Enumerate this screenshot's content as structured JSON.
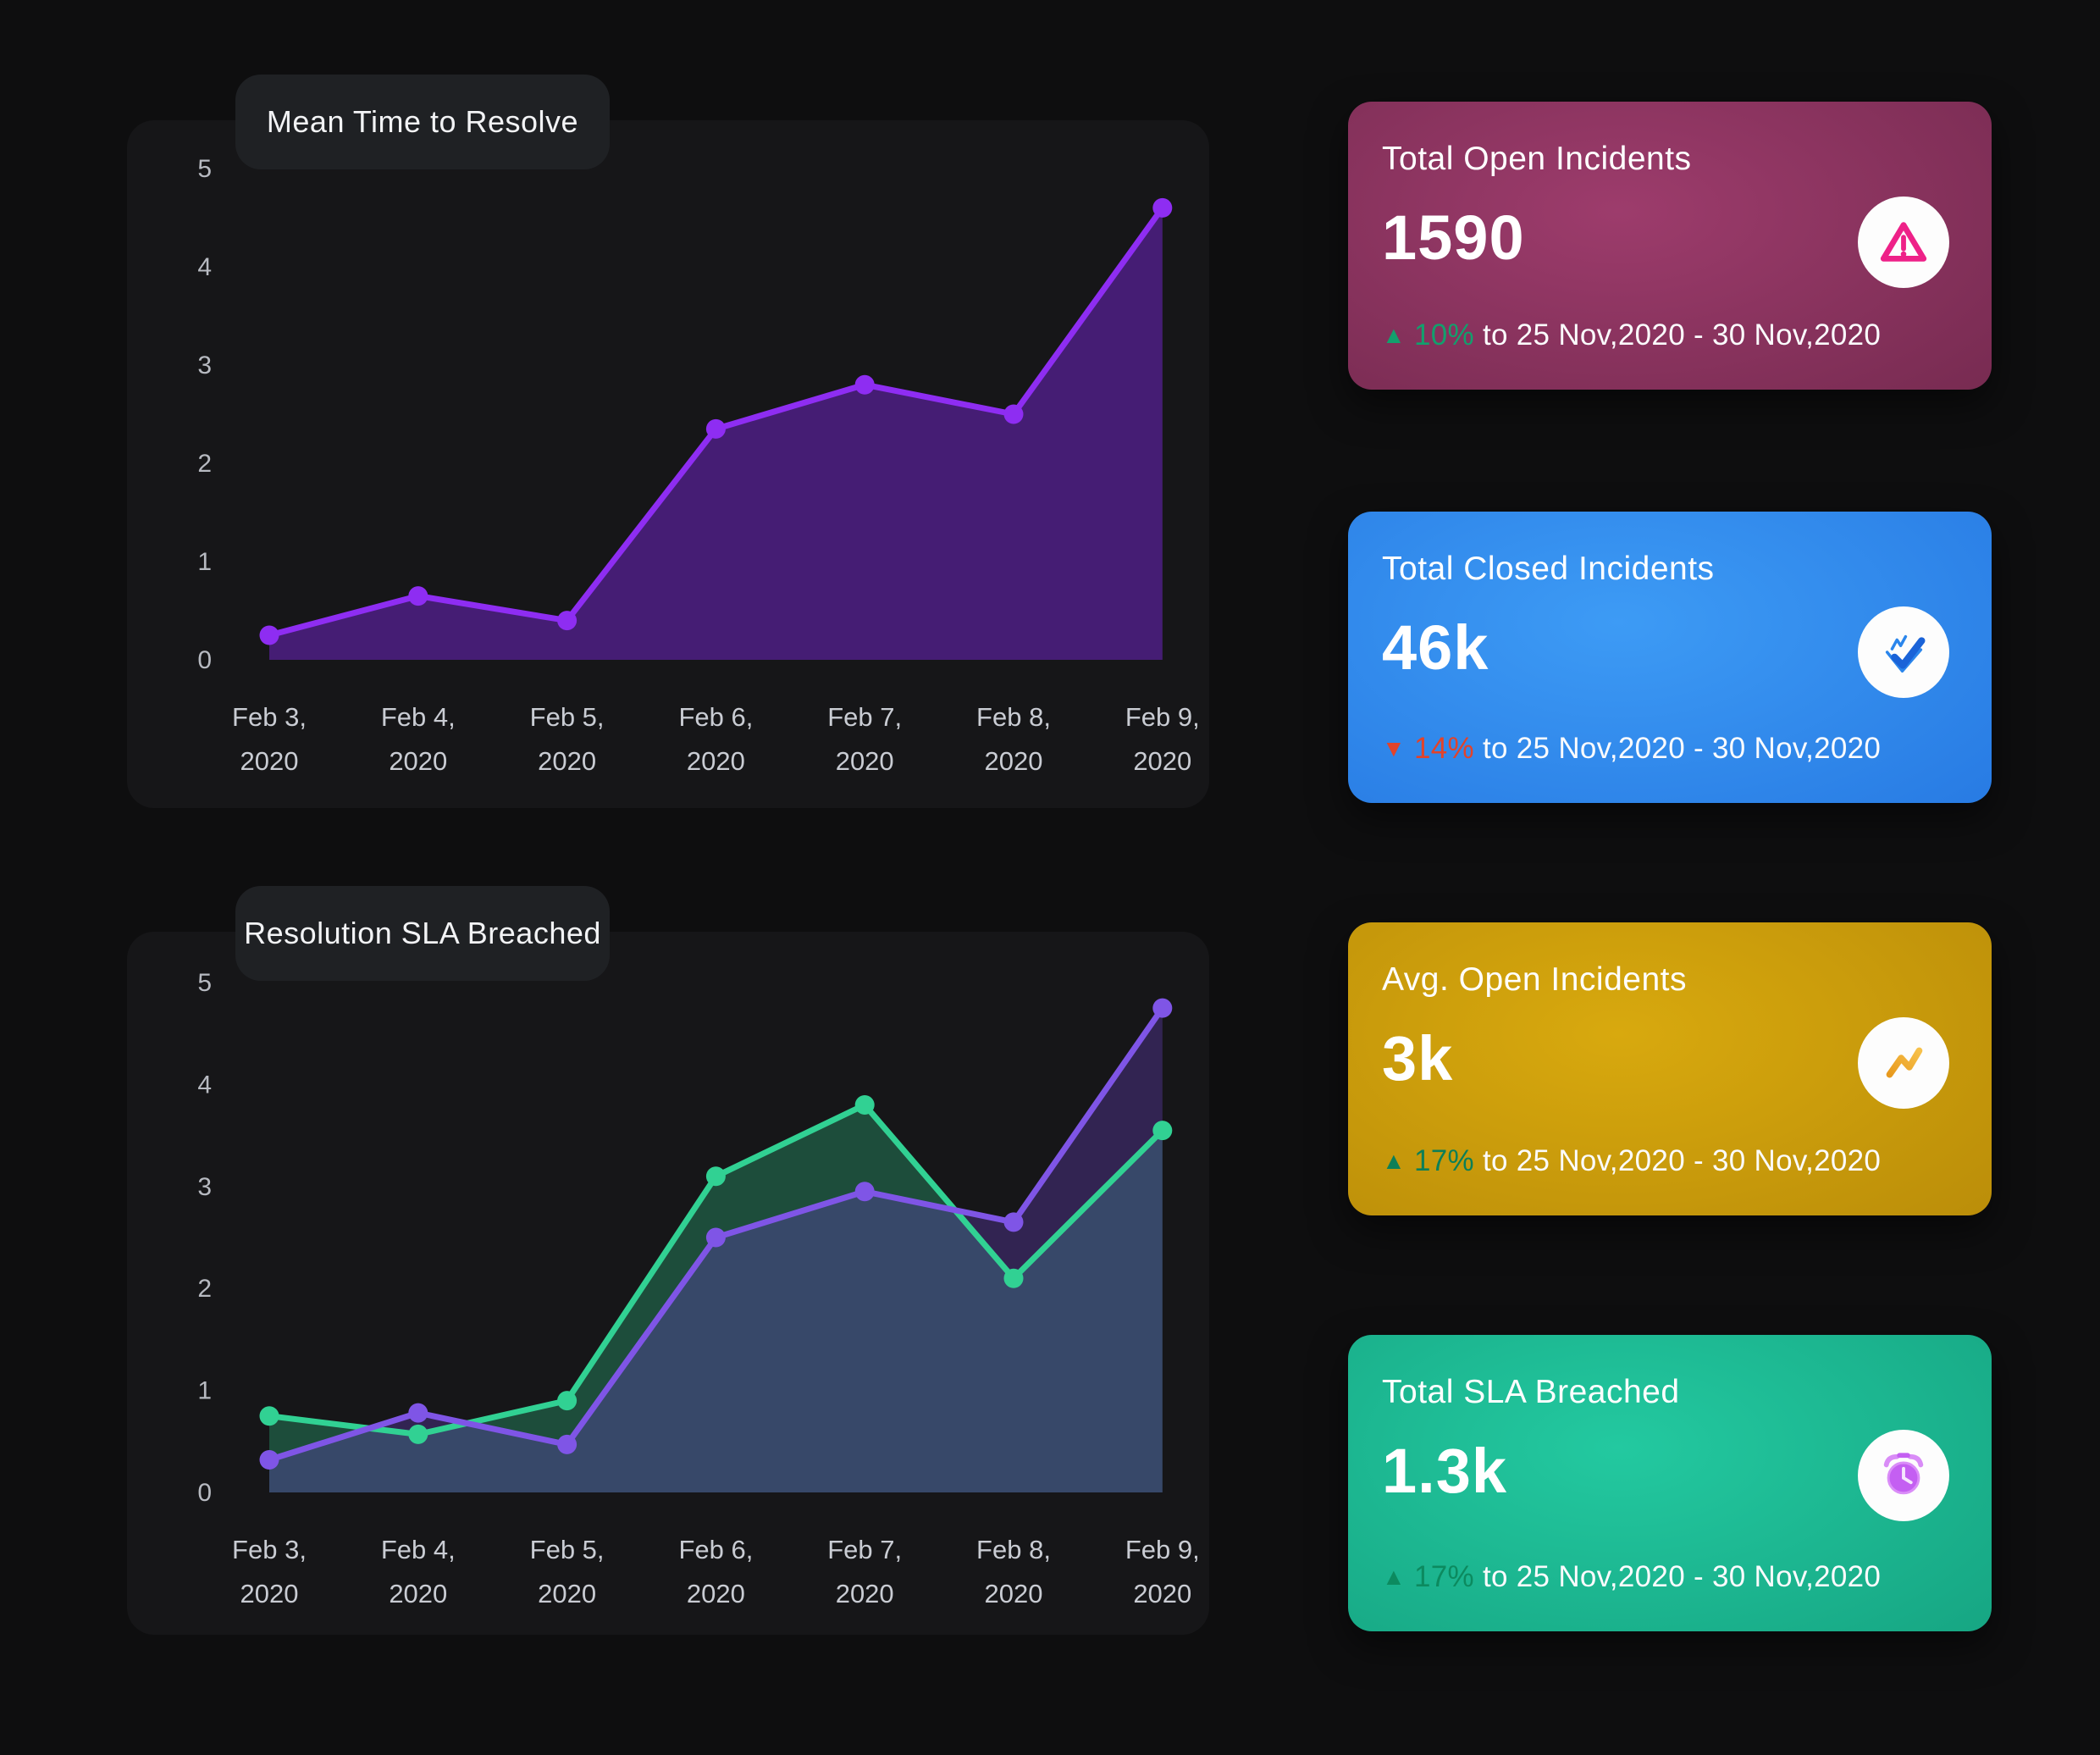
{
  "chart_data": [
    {
      "type": "area",
      "title": "Mean Time to Resolve",
      "categories": [
        {
          "line1": "Feb 3,",
          "line2": "2020"
        },
        {
          "line1": "Feb 4,",
          "line2": "2020"
        },
        {
          "line1": "Feb 5,",
          "line2": "2020"
        },
        {
          "line1": "Feb 6,",
          "line2": "2020"
        },
        {
          "line1": "Feb 7,",
          "line2": "2020"
        },
        {
          "line1": "Feb 8,",
          "line2": "2020"
        },
        {
          "line1": "Feb 9,",
          "line2": "2020"
        }
      ],
      "series": [
        {
          "name": "mean-time-to-resolve",
          "color": "#8e2df2",
          "fill": "rgba(91,33,160,0.68)",
          "values": [
            0.25,
            0.65,
            0.4,
            2.35,
            2.8,
            2.5,
            4.6
          ]
        }
      ],
      "ylim": [
        0,
        5
      ],
      "yticks": [
        0,
        1,
        2,
        3,
        4,
        5
      ],
      "grid": false,
      "legend": "none"
    },
    {
      "type": "area",
      "title": "Resolution SLA Breached",
      "categories": [
        {
          "line1": "Feb 3,",
          "line2": "2020"
        },
        {
          "line1": "Feb 4,",
          "line2": "2020"
        },
        {
          "line1": "Feb 5,",
          "line2": "2020"
        },
        {
          "line1": "Feb 6,",
          "line2": "2020"
        },
        {
          "line1": "Feb 7,",
          "line2": "2020"
        },
        {
          "line1": "Feb 8,",
          "line2": "2020"
        },
        {
          "line1": "Feb 9,",
          "line2": "2020"
        }
      ],
      "series": [
        {
          "name": "sla-breached-green",
          "color": "#31d193",
          "fill": "rgba(46,190,130,0.33)",
          "values": [
            0.75,
            0.57,
            0.9,
            3.1,
            3.8,
            2.1,
            3.55
          ]
        },
        {
          "name": "sla-breached-purple",
          "color": "#7f55e6",
          "fill": "rgba(105,65,195,0.34)",
          "values": [
            0.32,
            0.78,
            0.47,
            2.5,
            2.95,
            2.65,
            4.75
          ]
        }
      ],
      "ylim": [
        0,
        5
      ],
      "yticks": [
        0,
        1,
        2,
        3,
        4,
        5
      ],
      "grid": false,
      "legend": "none"
    }
  ],
  "cards": [
    {
      "title": "Total Open Incidents",
      "value": "1590",
      "icon": "warning-icon",
      "delta_symbol": "▲",
      "delta_value": "10%",
      "delta_color": "#12a06d",
      "period_text": "to 25 Nov,2020 - 30 Nov,2020",
      "bg_center": "#9d3c6c",
      "bg_edge": "#5f2040",
      "icon_color": "#ee2188"
    },
    {
      "title": "Total Closed Incidents",
      "value": "46k",
      "icon": "closed-check-icon",
      "delta_symbol": "▼",
      "delta_value": "14%",
      "delta_color": "#e2432a",
      "period_text": "to 25 Nov,2020 - 30 Nov,2020",
      "bg_center": "#3d9bf5",
      "bg_edge": "#1a66d8",
      "icon_color": "#1a63d8"
    },
    {
      "title": "Avg. Open Incidents",
      "value": "3k",
      "icon": "trend-icon",
      "delta_symbol": "▲",
      "delta_value": "17%",
      "delta_color": "#0c7f57",
      "period_text": "to 25 Nov,2020 - 30 Nov,2020",
      "bg_center": "#d8a90e",
      "bg_edge": "#a87c06",
      "icon_color": "#f2aa2e"
    },
    {
      "title": "Total SLA Breached",
      "value": "1.3k",
      "icon": "alarm-icon",
      "delta_symbol": "▲",
      "delta_value": "17%",
      "delta_color": "#0c8a5f",
      "period_text": "to 25 Nov,2020 - 30 Nov,2020",
      "bg_center": "#23c9a0",
      "bg_edge": "#0e8f70",
      "icon_color": "#c45ff2"
    }
  ]
}
